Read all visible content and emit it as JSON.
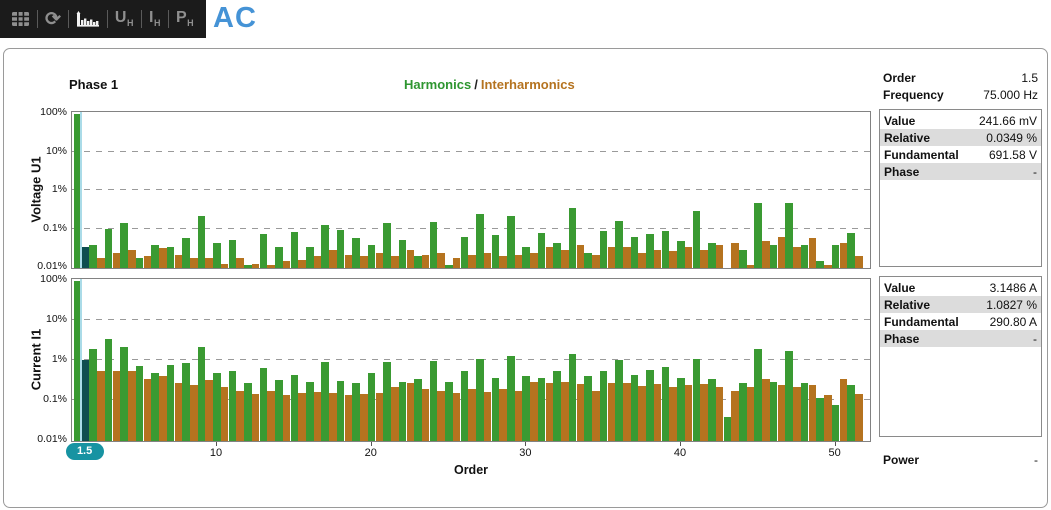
{
  "toolbar": {
    "title": "AC",
    "refresh_glyph": "⟳",
    "items": [
      {
        "name": "table-view-icon",
        "label": ""
      },
      {
        "name": "refresh-icon",
        "label": ""
      },
      {
        "name": "harmonics-chart-icon",
        "label": "",
        "active": true
      },
      {
        "name": "voltage-harmonics-button",
        "label": "U",
        "sub": "H"
      },
      {
        "name": "current-harmonics-button",
        "label": "I",
        "sub": "H"
      },
      {
        "name": "power-harmonics-button",
        "label": "P",
        "sub": "H"
      }
    ]
  },
  "header": {
    "phase": "Phase 1",
    "legend": {
      "harmonics": "Harmonics",
      "separator": "/",
      "interharmonics": "Interharmonics"
    }
  },
  "colors": {
    "harmonic": "#3a9a32",
    "interharmonic": "#b5731f",
    "selected_bar": "#0e4d4f",
    "cursor_line": "#aadbe8",
    "badge": "#1793a2",
    "accent_blue": "#4593d6"
  },
  "cursor": {
    "order": 1.5,
    "badge_label": "1.5"
  },
  "info": {
    "order": {
      "label": "Order",
      "value": "1.5"
    },
    "frequency": {
      "label": "Frequency",
      "value": "75.000 Hz"
    },
    "voltage": {
      "value": {
        "label": "Value",
        "value": "241.66 mV"
      },
      "relative": {
        "label": "Relative",
        "value": "0.0349 %"
      },
      "fundamental": {
        "label": "Fundamental",
        "value": "691.58 V"
      },
      "phase": {
        "label": "Phase",
        "value": "-"
      }
    },
    "current": {
      "value": {
        "label": "Value",
        "value": "3.1486 A"
      },
      "relative": {
        "label": "Relative",
        "value": "1.0827 %"
      },
      "fundamental": {
        "label": "Fundamental",
        "value": "290.80 A"
      },
      "phase": {
        "label": "Phase",
        "value": "-"
      }
    },
    "power": {
      "label": "Power",
      "value": "-"
    }
  },
  "chart_data": [
    {
      "type": "bar",
      "title": "Voltage U1 harmonic spectrum",
      "ylabel": "Voltage  U1",
      "xlabel": "Order",
      "yscale": "log",
      "ylim": [
        0.01,
        100
      ],
      "ytick_values": [
        100,
        10,
        1,
        0.1,
        0.01
      ],
      "ytick_labels": [
        "100%",
        "10%",
        "1%",
        "0.1%",
        "0.01%"
      ],
      "xticks": [
        10,
        20,
        30,
        40,
        50
      ],
      "grid": "dashed-horizontal",
      "selected": {
        "series_index": 1,
        "order": 1.5
      },
      "series": [
        {
          "name": "Harmonics",
          "order_start": 1,
          "order_step": 1,
          "values": [
            100,
            0.04,
            0.105,
            0.15,
            0.018,
            0.04,
            0.035,
            0.06,
            0.22,
            0.045,
            0.055,
            0.012,
            0.075,
            0.035,
            0.085,
            0.035,
            0.13,
            0.095,
            0.06,
            0.04,
            0.15,
            0.055,
            0.02,
            0.16,
            0.012,
            0.065,
            0.25,
            0.07,
            0.22,
            0.035,
            0.08,
            0.045,
            0.37,
            0.025,
            0.09,
            0.17,
            0.065,
            0.075,
            0.09,
            0.05,
            0.3,
            0.045,
            0.01,
            0.03,
            0.5,
            0.04,
            0.48,
            0.04,
            0.015,
            0.04,
            0.08
          ]
        },
        {
          "name": "Interharmonics",
          "order_start": 1.5,
          "order_step": 1,
          "values": [
            0.0349,
            0.018,
            0.025,
            0.03,
            0.02,
            0.033,
            0.022,
            0.018,
            0.018,
            0.013,
            0.018,
            0.013,
            0.012,
            0.015,
            0.016,
            0.02,
            0.03,
            0.022,
            0.02,
            0.025,
            0.02,
            0.03,
            0.022,
            0.025,
            0.018,
            0.022,
            0.025,
            0.02,
            0.022,
            0.025,
            0.035,
            0.03,
            0.04,
            0.022,
            0.035,
            0.035,
            0.025,
            0.03,
            0.028,
            0.035,
            0.03,
            0.04,
            0.045,
            0.012,
            0.05,
            0.065,
            0.035,
            0.06,
            0.012,
            0.045,
            0.02
          ]
        }
      ]
    },
    {
      "type": "bar",
      "title": "Current I1 harmonic spectrum",
      "ylabel": "Current  I1",
      "xlabel": "Order",
      "yscale": "log",
      "ylim": [
        0.01,
        100
      ],
      "ytick_values": [
        100,
        10,
        1,
        0.1,
        0.01
      ],
      "ytick_labels": [
        "100%",
        "10%",
        "1%",
        "0.1%",
        "0.01%"
      ],
      "xticks": [
        10,
        20,
        30,
        40,
        50
      ],
      "grid": "dashed-horizontal",
      "selected": {
        "series_index": 1,
        "order": 1.5
      },
      "series": [
        {
          "name": "Harmonics",
          "order_start": 1,
          "order_step": 1,
          "values": [
            100,
            2.0,
            3.5,
            2.3,
            0.75,
            0.5,
            0.8,
            0.9,
            2.2,
            0.5,
            0.55,
            0.28,
            0.65,
            0.33,
            0.45,
            0.3,
            0.95,
            0.32,
            0.28,
            0.5,
            0.95,
            0.3,
            0.35,
            1.0,
            0.3,
            0.55,
            1.1,
            0.38,
            1.3,
            0.42,
            0.38,
            0.55,
            1.5,
            0.42,
            0.55,
            1.05,
            0.45,
            0.6,
            0.7,
            0.38,
            1.1,
            0.35,
            0.04,
            0.28,
            2.0,
            0.3,
            1.8,
            0.28,
            0.12,
            0.08,
            0.25
          ]
        },
        {
          "name": "Interharmonics",
          "order_start": 1.5,
          "order_step": 1,
          "values": [
            1.0827,
            0.55,
            0.55,
            0.57,
            0.35,
            0.42,
            0.28,
            0.25,
            0.33,
            0.22,
            0.18,
            0.15,
            0.18,
            0.14,
            0.16,
            0.17,
            0.16,
            0.14,
            0.15,
            0.16,
            0.22,
            0.28,
            0.2,
            0.18,
            0.16,
            0.2,
            0.17,
            0.2,
            0.18,
            0.3,
            0.28,
            0.3,
            0.27,
            0.18,
            0.28,
            0.28,
            0.24,
            0.26,
            0.22,
            0.25,
            0.26,
            0.22,
            0.18,
            0.22,
            0.35,
            0.25,
            0.22,
            0.25,
            0.14,
            0.35,
            0.15
          ]
        }
      ]
    }
  ]
}
